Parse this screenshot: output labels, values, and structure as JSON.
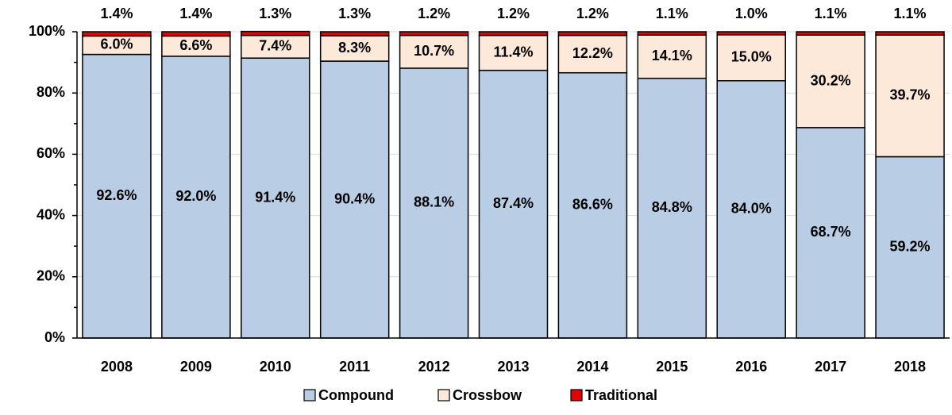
{
  "chart_data": {
    "type": "stacked_bar",
    "categories": [
      "2008",
      "2009",
      "2010",
      "2011",
      "2012",
      "2013",
      "2014",
      "2015",
      "2016",
      "2017",
      "2018"
    ],
    "series": [
      {
        "name": "Compound",
        "color": "#b9cde5",
        "values": [
          92.6,
          92.0,
          91.4,
          90.4,
          88.1,
          87.4,
          86.6,
          84.8,
          84.0,
          68.7,
          59.2
        ],
        "value_labels": [
          "92.6%",
          "92.0%",
          "91.4%",
          "90.4%",
          "88.1%",
          "87.4%",
          "86.6%",
          "84.8%",
          "84.0%",
          "68.7%",
          "59.2%"
        ]
      },
      {
        "name": "Crossbow",
        "color": "#fde9d9",
        "values": [
          6.0,
          6.6,
          7.4,
          8.3,
          10.7,
          11.4,
          12.2,
          14.1,
          15.0,
          30.2,
          39.7
        ],
        "value_labels": [
          "6.0%",
          "6.6%",
          "7.4%",
          "8.3%",
          "10.7%",
          "11.4%",
          "12.2%",
          "14.1%",
          "15.0%",
          "30.2%",
          "39.7%"
        ]
      },
      {
        "name": "Traditional",
        "color": "#e60000",
        "values": [
          1.4,
          1.4,
          1.3,
          1.3,
          1.2,
          1.2,
          1.2,
          1.1,
          1.0,
          1.1,
          1.1
        ],
        "value_labels": [
          "1.4%",
          "1.4%",
          "1.3%",
          "1.3%",
          "1.2%",
          "1.2%",
          "1.2%",
          "1.1%",
          "1.0%",
          "1.1%",
          "1.1%"
        ]
      }
    ],
    "ylim": [
      0,
      100
    ],
    "yticks": [
      {
        "value": 0,
        "label": "0%"
      },
      {
        "value": 20,
        "label": "20%"
      },
      {
        "value": 40,
        "label": "40%"
      },
      {
        "value": 60,
        "label": "60%"
      },
      {
        "value": 80,
        "label": "80%"
      },
      {
        "value": 100,
        "label": "100%"
      }
    ],
    "grid": true,
    "legend": "bottom"
  }
}
